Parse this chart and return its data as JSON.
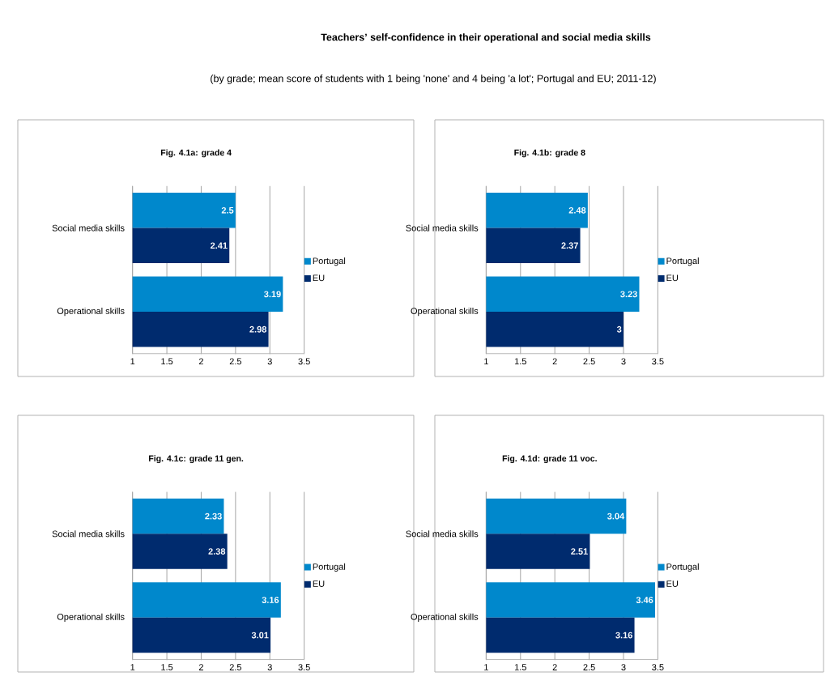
{
  "chart_data": [
    {
      "type": "other",
      "title": "Teachers’ self-confidence in their operational and social media skills",
      "subtitle": "(by grade; mean score of students with 1 being 'none' and 4 being 'a lot'; Portugal and EU; 2011-12)"
    },
    {
      "type": "bar",
      "orientation": "horizontal",
      "title": "Fig. 4.1a: grade 4",
      "categories": [
        "Social media skills",
        "Operational skills"
      ],
      "series": [
        {
          "name": "Portugal",
          "color": "#0088cc",
          "values": [
            2.5,
            3.19
          ]
        },
        {
          "name": "EU",
          "color": "#002b6e",
          "values": [
            2.41,
            2.98
          ]
        }
      ],
      "xlim": [
        1,
        3.5
      ],
      "xticks": [
        1,
        1.5,
        2,
        2.5,
        3,
        3.5
      ],
      "grid": "x",
      "legend": "right",
      "data_labels": true
    },
    {
      "type": "bar",
      "orientation": "horizontal",
      "title": "Fig. 4.1b: grade 8",
      "categories": [
        "Social media skills",
        "Operational skills"
      ],
      "series": [
        {
          "name": "Portugal",
          "color": "#0088cc",
          "values": [
            2.48,
            3.23
          ]
        },
        {
          "name": "EU",
          "color": "#002b6e",
          "values": [
            2.37,
            3
          ]
        }
      ],
      "xlim": [
        1,
        3.5
      ],
      "xticks": [
        1,
        1.5,
        2,
        2.5,
        3,
        3.5
      ],
      "grid": "x",
      "legend": "right",
      "data_labels": true
    },
    {
      "type": "bar",
      "orientation": "horizontal",
      "title": "Fig. 4.1c: grade 11 gen.",
      "categories": [
        "Social media skills",
        "Operational skills"
      ],
      "series": [
        {
          "name": "Portugal",
          "color": "#0088cc",
          "values": [
            2.33,
            3.16
          ]
        },
        {
          "name": "EU",
          "color": "#002b6e",
          "values": [
            2.38,
            3.01
          ]
        }
      ],
      "xlim": [
        1,
        3.5
      ],
      "xticks": [
        1,
        1.5,
        2,
        2.5,
        3,
        3.5
      ],
      "grid": "x",
      "legend": "right",
      "data_labels": true
    },
    {
      "type": "bar",
      "orientation": "horizontal",
      "title": "Fig. 4.1d: grade 11 voc.",
      "categories": [
        "Social media skills",
        "Operational skills"
      ],
      "series": [
        {
          "name": "Portugal",
          "color": "#0088cc",
          "values": [
            3.04,
            3.46
          ]
        },
        {
          "name": "EU",
          "color": "#002b6e",
          "values": [
            2.51,
            3.16
          ]
        }
      ],
      "xlim": [
        1,
        3.5
      ],
      "xticks": [
        1,
        1.5,
        2,
        2.5,
        3,
        3.5
      ],
      "grid": "x",
      "legend": "right",
      "data_labels": true
    }
  ]
}
